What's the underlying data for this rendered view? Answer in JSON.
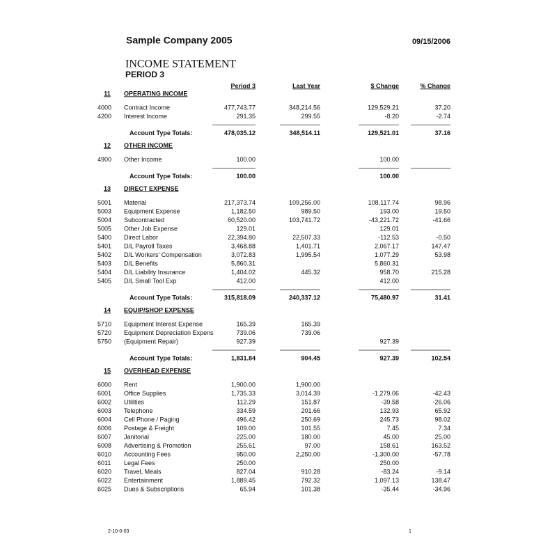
{
  "header": {
    "company": "Sample Company 2005",
    "date": "09/15/2006",
    "title": "INCOME STATEMENT",
    "period": "PERIOD 3"
  },
  "columns": [
    "Period 3",
    "Last Year",
    "$ Change",
    "% Change"
  ],
  "sections": [
    {
      "code": "11",
      "name": "OPERATING INCOME",
      "rows": [
        [
          "4000",
          "Contract Income",
          "477,743.77",
          "348,214.56",
          "129,529.21",
          "37.20"
        ],
        [
          "4200",
          "Interest Income",
          "291.35",
          "299.55",
          "-8.20",
          "-2.74"
        ]
      ],
      "totals": {
        "label": "Account Type Totals:",
        "values": [
          "478,035.12",
          "348,514.11",
          "129,521.01",
          "37.16"
        ]
      }
    },
    {
      "code": "12",
      "name": "OTHER INCOME",
      "rows": [
        [
          "4900",
          "Other Income",
          "100.00",
          null,
          "100.00",
          null
        ]
      ],
      "totals": {
        "label": "Account Type Totals:",
        "values": [
          "100.00",
          null,
          "100.00",
          null
        ]
      }
    },
    {
      "code": "13",
      "name": "DIRECT EXPENSE",
      "rows": [
        [
          "5001",
          "Material",
          "217,373.74",
          "109,256.00",
          "108,117.74",
          "98.96"
        ],
        [
          "5003",
          "Equipment Expense",
          "1,182.50",
          "989.50",
          "193.00",
          "19.50"
        ],
        [
          "5004",
          "Subcontracted",
          "60,520.00",
          "103,741.72",
          "-43,221.72",
          "-41.66"
        ],
        [
          "5005",
          "Other Job Expense",
          "129.01",
          null,
          "129.01",
          null
        ],
        [
          "5400",
          "Direct Labor",
          "22,394.80",
          "22,507.33",
          "-112.53",
          "-0.50"
        ],
        [
          "5401",
          "D/L Payroll Taxes",
          "3,468.88",
          "1,401.71",
          "2,067.17",
          "147.47"
        ],
        [
          "5402",
          "D/L Workers' Compensation",
          "3,072.83",
          "1,995.54",
          "1,077.29",
          "53.98"
        ],
        [
          "5403",
          "D/L Benefits",
          "5,860.31",
          null,
          "5,860.31",
          null
        ],
        [
          "5404",
          "D/L Liability Insurance",
          "1,404.02",
          "445.32",
          "958.70",
          "215.28"
        ],
        [
          "5405",
          "D/L Small Tool Exp",
          "412.00",
          null,
          "412.00",
          null
        ]
      ],
      "totals": {
        "label": "Account Type Totals:",
        "values": [
          "315,818.09",
          "240,337.12",
          "75,480.97",
          "31.41"
        ]
      }
    },
    {
      "code": "14",
      "name": "EQUIP/SHOP EXPENSE",
      "rows": [
        [
          "5710",
          "Equipment Interest Expense",
          "165.39",
          "165.39",
          null,
          null
        ],
        [
          "5720",
          "Equipment Depreciation Expens",
          "739.06",
          "739.06",
          null,
          null
        ],
        [
          "5750",
          "(Equipment Repair)",
          "927.39",
          null,
          "927.39",
          null
        ]
      ],
      "totals": {
        "label": "Account Type Totals:",
        "values": [
          "1,831.84",
          "904.45",
          "927.39",
          "102.54"
        ]
      }
    },
    {
      "code": "15",
      "name": "OVERHEAD EXPENSE",
      "rows": [
        [
          "6000",
          "Rent",
          "1,900.00",
          "1,900.00",
          null,
          null
        ],
        [
          "6001",
          "Office Supplies",
          "1,735.33",
          "3,014.39",
          "-1,279.06",
          "-42.43"
        ],
        [
          "6002",
          "Utilities",
          "112.29",
          "151.87",
          "-39.58",
          "-26.06"
        ],
        [
          "6003",
          "Telephone",
          "334.59",
          "201.66",
          "132.93",
          "65.92"
        ],
        [
          "6004",
          "Cell Phone / Paging",
          "496.42",
          "250.69",
          "245.73",
          "98.02"
        ],
        [
          "6006",
          "Postage & Freight",
          "109.00",
          "101.55",
          "7.45",
          "7.34"
        ],
        [
          "6007",
          "Janitorial",
          "225.00",
          "180.00",
          "45.00",
          "25.00"
        ],
        [
          "6008",
          "Advertising & Promotion",
          "255.61",
          "97.00",
          "158.61",
          "163.52"
        ],
        [
          "6010",
          "Accounting Fees",
          "950.00",
          "2,250.00",
          "-1,300.00",
          "-57.78"
        ],
        [
          "6011",
          "Legal Fees",
          "250.00",
          null,
          "250.00",
          null
        ],
        [
          "6020",
          "Travel, Meals",
          "827.04",
          "910.28",
          "-83.24",
          "-9.14"
        ],
        [
          "6022",
          "Entertainment",
          "1,889.45",
          "792.32",
          "1,097.13",
          "138.47"
        ],
        [
          "6025",
          "Dues & Subscriptions",
          "65.94",
          "101.38",
          "-35.44",
          "-34.96"
        ]
      ]
    }
  ],
  "footer": {
    "code": "2-10-0-03",
    "page": "1"
  }
}
